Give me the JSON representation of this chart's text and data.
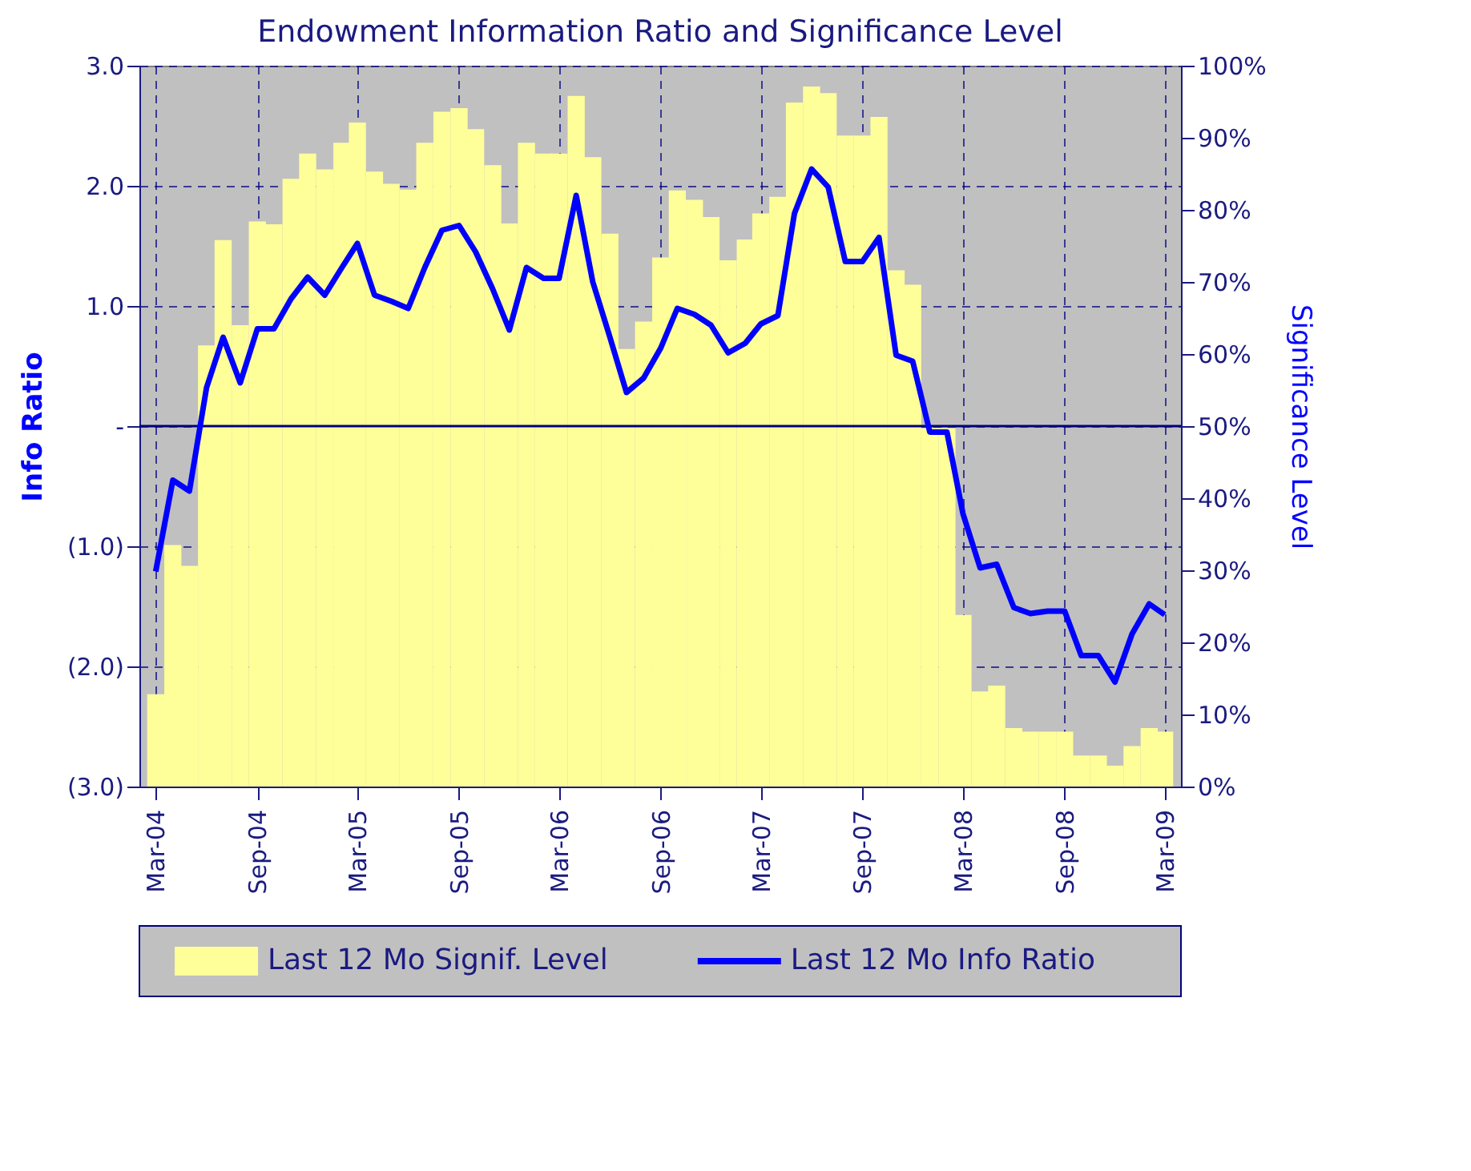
{
  "chart_data": {
    "type": "bar",
    "title": "Endowment Information Ratio and Significance Level",
    "ylabel": "Info Ratio",
    "y2label": "Significance Level",
    "x": [
      "2004-03",
      "2004-04",
      "2004-05",
      "2004-06",
      "2004-07",
      "2004-08",
      "2004-09",
      "2004-10",
      "2004-11",
      "2004-12",
      "2005-01",
      "2005-02",
      "2005-03",
      "2005-04",
      "2005-05",
      "2005-06",
      "2005-07",
      "2005-08",
      "2005-09",
      "2005-10",
      "2005-11",
      "2005-12",
      "2006-01",
      "2006-02",
      "2006-03",
      "2006-04",
      "2006-05",
      "2006-06",
      "2006-07",
      "2006-08",
      "2006-09",
      "2006-10",
      "2006-11",
      "2006-12",
      "2007-01",
      "2007-02",
      "2007-03",
      "2007-04",
      "2007-05",
      "2007-06",
      "2007-07",
      "2007-08",
      "2007-09",
      "2007-10",
      "2007-11",
      "2007-12",
      "2008-01",
      "2008-02",
      "2008-03",
      "2008-04",
      "2008-05",
      "2008-06",
      "2008-07",
      "2008-08",
      "2008-09",
      "2008-10",
      "2008-11",
      "2008-12",
      "2009-01",
      "2009-02",
      "2009-03"
    ],
    "series": [
      {
        "name": "Last 12 Mo Signif. Level",
        "axis": "y2",
        "color": "#ffff99",
        "values": [
          12.8,
          33.5,
          30.6,
          61.2,
          75.8,
          64.0,
          78.4,
          78.0,
          84.3,
          87.8,
          85.6,
          89.3,
          92.1,
          85.3,
          83.6,
          82.8,
          89.3,
          93.6,
          94.1,
          91.2,
          86.2,
          78.1,
          89.3,
          87.8,
          87.8,
          95.8,
          87.3,
          76.7,
          60.7,
          64.5,
          73.4,
          82.7,
          81.4,
          79.0,
          73.0,
          75.9,
          79.5,
          81.8,
          94.9,
          97.1,
          96.2,
          90.3,
          90.3,
          92.9,
          71.6,
          69.6,
          49.7,
          49.7,
          23.8,
          13.2,
          14.0,
          8.1,
          7.6,
          7.6,
          7.6,
          4.3,
          4.3,
          2.9,
          5.6,
          8.1,
          7.6
        ]
      },
      {
        "name": "Last 12 Mo Info Ratio",
        "type": "line",
        "color": "#0000ff",
        "values": [
          -1.21,
          -0.45,
          -0.54,
          0.32,
          0.74,
          0.36,
          0.81,
          0.81,
          1.06,
          1.24,
          1.09,
          1.32,
          1.52,
          1.09,
          1.04,
          0.98,
          1.32,
          1.63,
          1.67,
          1.45,
          1.14,
          0.8,
          1.32,
          1.23,
          1.23,
          1.92,
          1.2,
          0.74,
          0.28,
          0.4,
          0.65,
          0.98,
          0.93,
          0.84,
          0.61,
          0.69,
          0.85,
          0.92,
          1.77,
          2.14,
          1.99,
          1.37,
          1.37,
          1.57,
          0.59,
          0.54,
          -0.05,
          -0.05,
          -0.73,
          -1.18,
          -1.15,
          -1.51,
          -1.56,
          -1.54,
          -1.54,
          -1.91,
          -1.91,
          -2.13,
          -1.73,
          -1.48,
          -1.57
        ]
      }
    ],
    "xlim": [
      "2004-02-15",
      "2009-03-16"
    ],
    "xticks": [
      {
        "value": "2004-03",
        "label": "Mar-04"
      },
      {
        "value": "2004-09",
        "label": "Sep-04"
      },
      {
        "value": "2005-03",
        "label": "Mar-05"
      },
      {
        "value": "2005-09",
        "label": "Sep-05"
      },
      {
        "value": "2006-03",
        "label": "Mar-06"
      },
      {
        "value": "2006-09",
        "label": "Sep-06"
      },
      {
        "value": "2007-03",
        "label": "Mar-07"
      },
      {
        "value": "2007-09",
        "label": "Sep-07"
      },
      {
        "value": "2008-03",
        "label": "Mar-08"
      },
      {
        "value": "2008-09",
        "label": "Sep-08"
      },
      {
        "value": "2009-03",
        "label": "Mar-09"
      }
    ],
    "ylim": [
      -3,
      3
    ],
    "yticks": [
      {
        "value": 3,
        "label": "3.0"
      },
      {
        "value": 2,
        "label": "2.0"
      },
      {
        "value": 1,
        "label": "1.0"
      },
      {
        "value": 0,
        "label": "-"
      },
      {
        "value": -1,
        "label": "(1.0)"
      },
      {
        "value": -2,
        "label": "(2.0)"
      },
      {
        "value": -3,
        "label": "(3.0)"
      }
    ],
    "y2lim": [
      0,
      100
    ],
    "y2ticks": [
      {
        "value": 0,
        "label": "0%"
      },
      {
        "value": 10,
        "label": "10%"
      },
      {
        "value": 20,
        "label": "20%"
      },
      {
        "value": 30,
        "label": "30%"
      },
      {
        "value": 40,
        "label": "40%"
      },
      {
        "value": 50,
        "label": "50%"
      },
      {
        "value": 60,
        "label": "60%"
      },
      {
        "value": 70,
        "label": "70%"
      },
      {
        "value": 80,
        "label": "80%"
      },
      {
        "value": 90,
        "label": "90%"
      },
      {
        "value": 100,
        "label": "100%"
      }
    ],
    "ref_lines": [
      {
        "axis": "y",
        "value": 0,
        "color": "#000080"
      }
    ],
    "grid": true,
    "legend": "bottom",
    "marker": "none",
    "line_style": "solid"
  }
}
